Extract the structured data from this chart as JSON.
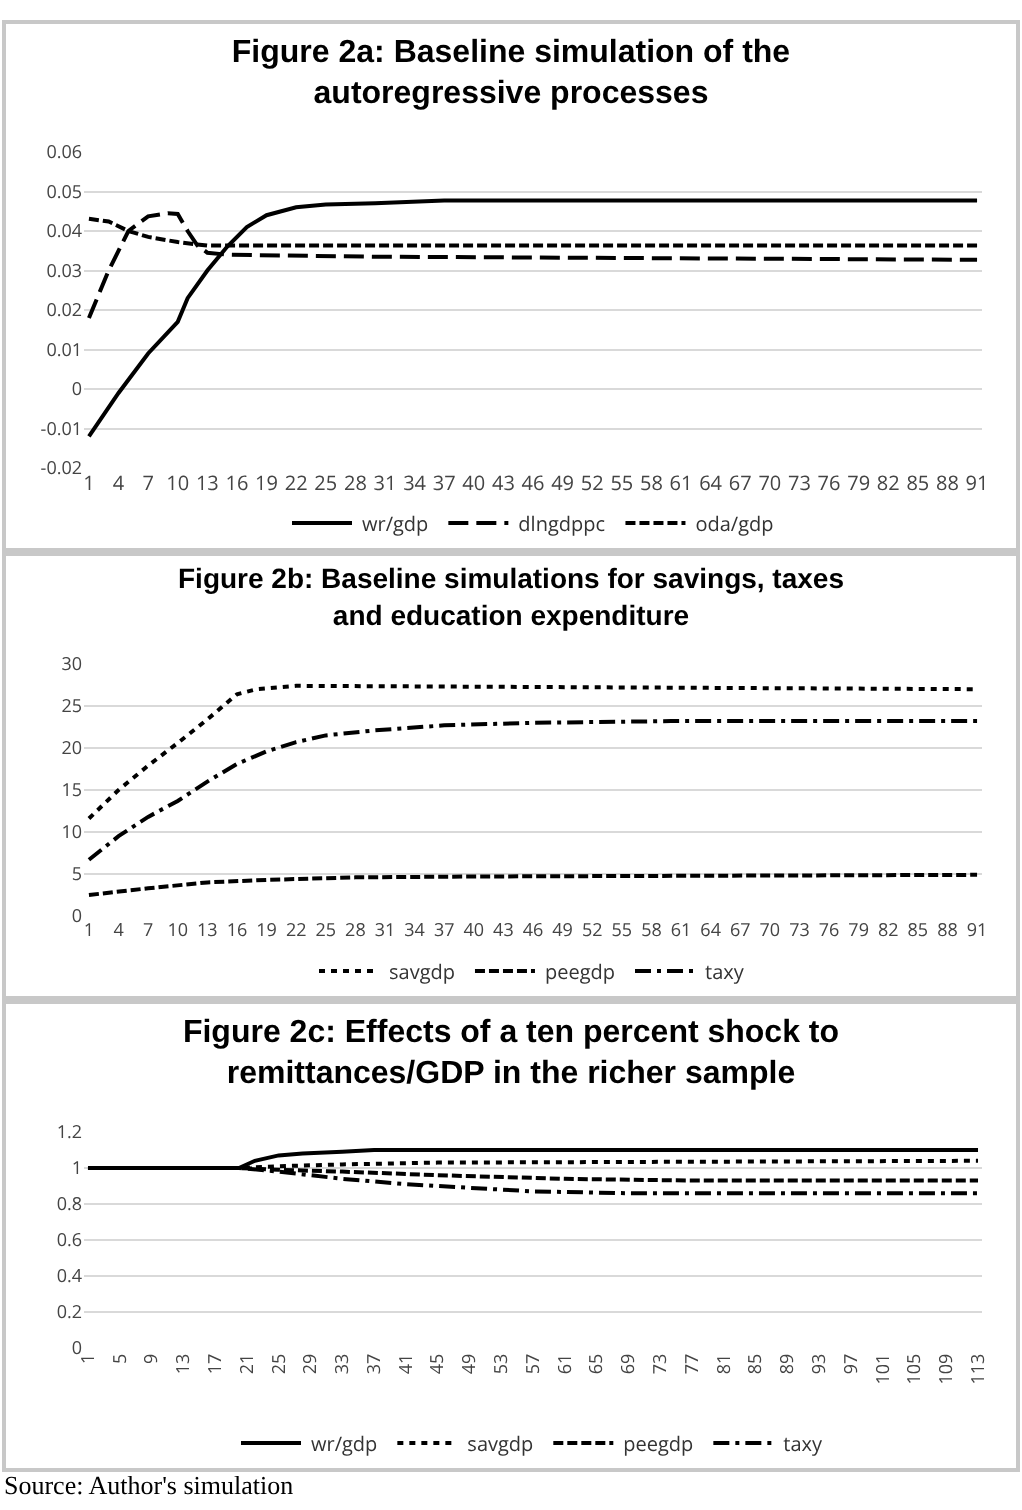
{
  "chart_data": [
    {
      "type": "line",
      "title": "Figure 2a: Baseline simulation of the autoregressive processes",
      "xlim": [
        0.5,
        91.5
      ],
      "xticks": [
        1,
        4,
        7,
        10,
        13,
        16,
        19,
        22,
        25,
        28,
        31,
        34,
        37,
        40,
        43,
        46,
        49,
        52,
        55,
        58,
        61,
        64,
        67,
        70,
        73,
        76,
        79,
        82,
        85,
        88,
        91
      ],
      "ylim": [
        -0.02,
        0.06
      ],
      "yticks": [
        -0.02,
        -0.01,
        0,
        0.01,
        0.02,
        0.03,
        0.04,
        0.05,
        0.06
      ],
      "grid": "y",
      "legend": "bottom",
      "series": [
        {
          "name": "wr/gdp",
          "color": "#000000",
          "line_style": "solid",
          "x": [
            1,
            4,
            7,
            10,
            11,
            13,
            15,
            17,
            19,
            22,
            25,
            30,
            37,
            91
          ],
          "values": [
            -0.012,
            -0.001,
            0.009,
            0.017,
            0.023,
            0.03,
            0.036,
            0.041,
            0.044,
            0.046,
            0.0467,
            0.047,
            0.0477,
            0.0477
          ]
        },
        {
          "name": "dlngdppc",
          "color": "#000000",
          "line_style": "longdash",
          "x": [
            1,
            3,
            5,
            7,
            9,
            10,
            11,
            12,
            13,
            15,
            30,
            91
          ],
          "values": [
            0.018,
            0.03,
            0.04,
            0.0437,
            0.0445,
            0.0443,
            0.04,
            0.0363,
            0.0345,
            0.034,
            0.0335,
            0.0327
          ]
        },
        {
          "name": "oda/gdp",
          "color": "#000000",
          "line_style": "dashed",
          "x": [
            1,
            3,
            5,
            7,
            10,
            13,
            20,
            91
          ],
          "values": [
            0.0431,
            0.0424,
            0.04,
            0.0385,
            0.0372,
            0.0363,
            0.0363,
            0.0363
          ]
        }
      ]
    },
    {
      "type": "line",
      "title": "Figure 2b: Baseline simulations for savings, taxes and education expenditure",
      "xlim": [
        0.5,
        91.5
      ],
      "xticks": [
        1,
        4,
        7,
        10,
        13,
        16,
        19,
        22,
        25,
        28,
        31,
        34,
        37,
        40,
        43,
        46,
        49,
        52,
        55,
        58,
        61,
        64,
        67,
        70,
        73,
        76,
        79,
        82,
        85,
        88,
        91
      ],
      "ylim": [
        0,
        30
      ],
      "yticks": [
        0,
        5,
        10,
        15,
        20,
        25,
        30
      ],
      "grid": "y",
      "legend": "bottom",
      "series": [
        {
          "name": "savgdp",
          "color": "#000000",
          "line_style": "dotted",
          "x": [
            1,
            4,
            7,
            10,
            13,
            16,
            18,
            22,
            40,
            91
          ],
          "values": [
            11.6,
            15,
            17.9,
            20.6,
            23.4,
            26.4,
            27,
            27.4,
            27.3,
            27
          ]
        },
        {
          "name": "peegdp",
          "color": "#000000",
          "line_style": "dashed",
          "x": [
            1,
            7,
            13,
            19,
            28,
            40,
            91
          ],
          "values": [
            2.5,
            3.3,
            4,
            4.3,
            4.6,
            4.7,
            4.9
          ]
        },
        {
          "name": "taxy",
          "color": "#000000",
          "line_style": "dashdot",
          "x": [
            1,
            4,
            7,
            10,
            13,
            16,
            19,
            22,
            25,
            30,
            37,
            46,
            60,
            91
          ],
          "values": [
            6.7,
            9.5,
            11.8,
            13.7,
            16,
            18.1,
            19.6,
            20.7,
            21.5,
            22.1,
            22.7,
            23,
            23.2,
            23.2
          ]
        }
      ]
    },
    {
      "type": "line",
      "title": "Figure 2c: Effects of a ten percent shock to remittances/GDP in the richer sample",
      "xlim": [
        0.5,
        113.5
      ],
      "xticks": [
        1,
        5,
        9,
        13,
        17,
        21,
        25,
        29,
        33,
        37,
        41,
        45,
        49,
        53,
        57,
        61,
        65,
        69,
        73,
        77,
        81,
        85,
        89,
        93,
        97,
        101,
        105,
        109,
        113
      ],
      "ylim": [
        0,
        1.2
      ],
      "yticks": [
        0,
        0.2,
        0.4,
        0.6,
        0.8,
        1,
        1.2
      ],
      "grid": "y",
      "legend": "bottom",
      "annotations": [
        "Source: Author's simulation"
      ],
      "series": [
        {
          "name": "wr/gdp",
          "color": "#000000",
          "line_style": "solid",
          "x": [
            1,
            20,
            22,
            25,
            28,
            33,
            37,
            113
          ],
          "values": [
            1,
            1,
            1.04,
            1.07,
            1.08,
            1.09,
            1.1,
            1.1
          ]
        },
        {
          "name": "savgdp",
          "color": "#000000",
          "line_style": "dotted",
          "x": [
            1,
            20,
            25,
            33,
            45,
            113
          ],
          "values": [
            1,
            1,
            1.01,
            1.02,
            1.03,
            1.04
          ]
        },
        {
          "name": "peegdp",
          "color": "#000000",
          "line_style": "dashed",
          "x": [
            1,
            20,
            25,
            33,
            45,
            61,
            77,
            113
          ],
          "values": [
            1,
            1,
            0.99,
            0.98,
            0.96,
            0.94,
            0.93,
            0.93
          ]
        },
        {
          "name": "taxy",
          "color": "#000000",
          "line_style": "dashdot",
          "x": [
            1,
            20,
            25,
            33,
            41,
            49,
            57,
            69,
            81,
            113
          ],
          "values": [
            1,
            1,
            0.98,
            0.94,
            0.91,
            0.89,
            0.87,
            0.86,
            0.86,
            0.86
          ]
        }
      ]
    }
  ]
}
